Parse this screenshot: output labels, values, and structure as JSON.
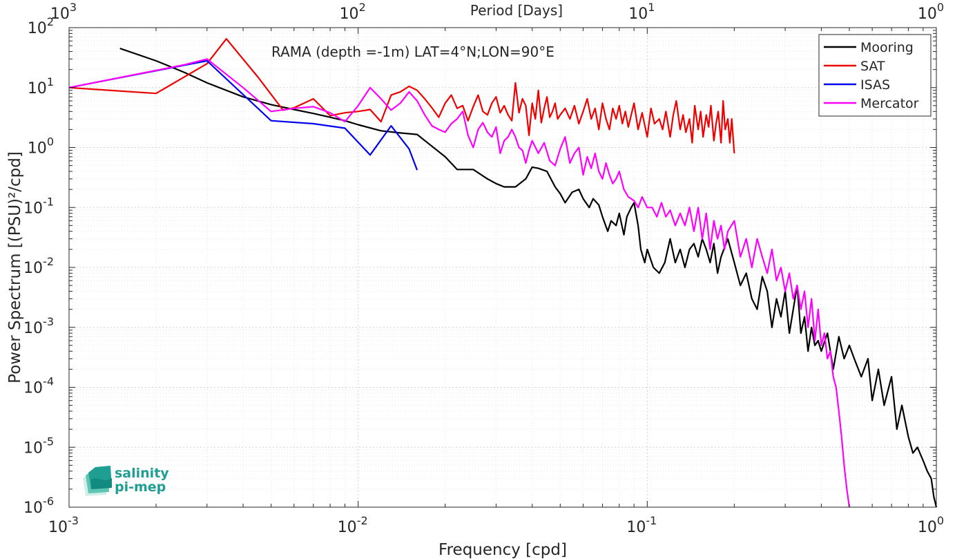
{
  "chart_data": {
    "type": "line",
    "title": "RAMA (depth =-1m) LAT=4°N;LON=90°E",
    "xlabel": "Frequency [cpd]",
    "ylabel": "Power Spectrum [(PSU)²/cpd]",
    "top_xlabel": "Period [Days]",
    "x_scale": "log",
    "y_scale": "log",
    "xlim": [
      0.001,
      1
    ],
    "ylim": [
      1e-06,
      100
    ],
    "grid": true,
    "legend_position": "top-right",
    "x_ticks": [
      {
        "base": "10",
        "exp": "-3"
      },
      {
        "base": "10",
        "exp": "-2"
      },
      {
        "base": "10",
        "exp": "-1"
      },
      {
        "base": "10",
        "exp": "0"
      }
    ],
    "top_x_ticks": [
      {
        "base": "10",
        "exp": "3"
      },
      {
        "base": "10",
        "exp": "2"
      },
      {
        "base": "10",
        "exp": "1"
      },
      {
        "base": "10",
        "exp": "0"
      }
    ],
    "y_ticks": [
      {
        "base": "10",
        "exp": "-6"
      },
      {
        "base": "10",
        "exp": "-5"
      },
      {
        "base": "10",
        "exp": "-4"
      },
      {
        "base": "10",
        "exp": "-3"
      },
      {
        "base": "10",
        "exp": "-2"
      },
      {
        "base": "10",
        "exp": "-1"
      },
      {
        "base": "10",
        "exp": "0"
      },
      {
        "base": "10",
        "exp": "1"
      },
      {
        "base": "10",
        "exp": "2"
      }
    ],
    "series": [
      {
        "name": "Mooring",
        "color": "#000000",
        "x": [
          0.0015,
          0.002,
          0.0025,
          0.003,
          0.004,
          0.005,
          0.006,
          0.007,
          0.008,
          0.009,
          0.01,
          0.012,
          0.014,
          0.016,
          0.018,
          0.02,
          0.022,
          0.025,
          0.028,
          0.03,
          0.032,
          0.035,
          0.038,
          0.04,
          0.042,
          0.045,
          0.048,
          0.05,
          0.052,
          0.055,
          0.058,
          0.06,
          0.063,
          0.065,
          0.068,
          0.07,
          0.073,
          0.075,
          0.078,
          0.08,
          0.083,
          0.085,
          0.088,
          0.09,
          0.093,
          0.095,
          0.098,
          0.1,
          0.105,
          0.11,
          0.115,
          0.12,
          0.125,
          0.13,
          0.135,
          0.14,
          0.145,
          0.15,
          0.155,
          0.16,
          0.165,
          0.17,
          0.175,
          0.18,
          0.19,
          0.2,
          0.21,
          0.22,
          0.23,
          0.24,
          0.25,
          0.26,
          0.27,
          0.28,
          0.29,
          0.3,
          0.31,
          0.32,
          0.33,
          0.34,
          0.35,
          0.36,
          0.37,
          0.38,
          0.39,
          0.4,
          0.42,
          0.44,
          0.46,
          0.48,
          0.5,
          0.52,
          0.55,
          0.58,
          0.6,
          0.63,
          0.66,
          0.7,
          0.73,
          0.76,
          0.8,
          0.83,
          0.86,
          0.9,
          0.93,
          0.96,
          0.98,
          1.0
        ],
        "y": [
          45,
          28,
          18,
          12,
          7,
          5.2,
          4.3,
          3.7,
          3.2,
          2.8,
          2.4,
          1.9,
          1.75,
          1.65,
          1.05,
          0.7,
          0.43,
          0.43,
          0.3,
          0.25,
          0.22,
          0.22,
          0.3,
          0.47,
          0.45,
          0.4,
          0.22,
          0.17,
          0.12,
          0.18,
          0.2,
          0.14,
          0.1,
          0.14,
          0.11,
          0.07,
          0.04,
          0.06,
          0.05,
          0.08,
          0.035,
          0.07,
          0.1,
          0.12,
          0.05,
          0.02,
          0.012,
          0.02,
          0.01,
          0.008,
          0.012,
          0.03,
          0.012,
          0.02,
          0.01,
          0.02,
          0.025,
          0.015,
          0.03,
          0.02,
          0.012,
          0.025,
          0.008,
          0.015,
          0.03,
          0.012,
          0.005,
          0.008,
          0.003,
          0.002,
          0.007,
          0.004,
          0.001,
          0.003,
          0.0015,
          0.004,
          0.0008,
          0.002,
          0.005,
          0.0008,
          0.0015,
          0.0004,
          0.001,
          0.0005,
          0.0006,
          0.0004,
          0.0008,
          0.0002,
          0.0007,
          0.0003,
          0.0005,
          0.0003,
          0.00015,
          0.0003,
          6e-05,
          0.0002,
          5e-05,
          0.00015,
          2e-05,
          5e-05,
          1.5e-05,
          8e-06,
          1e-05,
          6e-06,
          4e-06,
          3e-06,
          1.5e-06,
          1e-06
        ]
      },
      {
        "name": "SAT",
        "color": "#ee0000",
        "x": [
          0.001,
          0.002,
          0.003,
          0.0035,
          0.0045,
          0.0055,
          0.006,
          0.007,
          0.008,
          0.009,
          0.01,
          0.011,
          0.012,
          0.013,
          0.014,
          0.015,
          0.016,
          0.017,
          0.018,
          0.019,
          0.02,
          0.021,
          0.022,
          0.023,
          0.024,
          0.025,
          0.026,
          0.027,
          0.028,
          0.029,
          0.03,
          0.031,
          0.032,
          0.033,
          0.034,
          0.035,
          0.036,
          0.037,
          0.038,
          0.039,
          0.04,
          0.041,
          0.042,
          0.043,
          0.044,
          0.045,
          0.046,
          0.047,
          0.048,
          0.049,
          0.05,
          0.052,
          0.054,
          0.056,
          0.058,
          0.06,
          0.062,
          0.064,
          0.066,
          0.068,
          0.07,
          0.072,
          0.074,
          0.076,
          0.078,
          0.08,
          0.082,
          0.084,
          0.086,
          0.088,
          0.09,
          0.093,
          0.096,
          0.1,
          0.103,
          0.106,
          0.11,
          0.113,
          0.116,
          0.12,
          0.123,
          0.126,
          0.13,
          0.133,
          0.136,
          0.14,
          0.143,
          0.146,
          0.15,
          0.153,
          0.156,
          0.16,
          0.163,
          0.166,
          0.17,
          0.173,
          0.176,
          0.18,
          0.183,
          0.186,
          0.19,
          0.193,
          0.196,
          0.2
        ],
        "y": [
          10,
          8,
          25,
          65,
          15,
          4.2,
          4.6,
          6.5,
          3.4,
          3.8,
          4.0,
          4.3,
          2.7,
          7.5,
          8.5,
          10.5,
          9,
          6.5,
          4.6,
          3.2,
          5.5,
          7.5,
          4.5,
          5.0,
          2.8,
          4.8,
          7.5,
          4.0,
          3.5,
          5.5,
          7.0,
          3.8,
          5.0,
          3.5,
          2.8,
          12,
          3.8,
          6.5,
          5.0,
          1.6,
          5.5,
          3.0,
          9.0,
          2.6,
          4.5,
          7.0,
          3.2,
          4.0,
          5.5,
          3.0,
          3.5,
          4.5,
          3.0,
          5.0,
          2.5,
          4.0,
          6.5,
          3.0,
          4.5,
          2.0,
          5.5,
          3.0,
          2.0,
          4.5,
          3.0,
          5.0,
          2.5,
          4.0,
          2.2,
          3.5,
          5.5,
          2.0,
          3.8,
          1.5,
          4.5,
          2.5,
          3.0,
          2.0,
          4.0,
          1.5,
          3.5,
          6.0,
          2.0,
          3.5,
          1.8,
          3.0,
          1.2,
          5.0,
          2.0,
          4.0,
          1.5,
          3.5,
          2.2,
          5.0,
          1.3,
          2.5,
          4.0,
          1.2,
          6.0,
          2.0,
          3.0,
          1.2,
          3.0,
          0.8
        ]
      },
      {
        "name": "ISAS",
        "color": "#0000ee",
        "x": [
          0.001,
          0.003,
          0.005,
          0.007,
          0.009,
          0.011,
          0.013,
          0.015,
          0.016
        ],
        "y": [
          10,
          28,
          2.8,
          2.5,
          2.1,
          0.75,
          2.3,
          0.95,
          0.42
        ]
      },
      {
        "name": "Mercator",
        "color": "#ff00ff",
        "x": [
          0.001,
          0.0025,
          0.003,
          0.004,
          0.005,
          0.006,
          0.007,
          0.008,
          0.009,
          0.01,
          0.011,
          0.012,
          0.013,
          0.014,
          0.015,
          0.016,
          0.017,
          0.018,
          0.019,
          0.02,
          0.021,
          0.022,
          0.023,
          0.024,
          0.025,
          0.026,
          0.027,
          0.028,
          0.029,
          0.03,
          0.031,
          0.032,
          0.033,
          0.034,
          0.035,
          0.036,
          0.037,
          0.038,
          0.039,
          0.04,
          0.042,
          0.044,
          0.046,
          0.048,
          0.05,
          0.052,
          0.054,
          0.056,
          0.058,
          0.06,
          0.062,
          0.064,
          0.066,
          0.068,
          0.07,
          0.072,
          0.074,
          0.076,
          0.078,
          0.08,
          0.083,
          0.086,
          0.09,
          0.093,
          0.096,
          0.1,
          0.104,
          0.108,
          0.112,
          0.116,
          0.12,
          0.125,
          0.13,
          0.135,
          0.14,
          0.145,
          0.15,
          0.155,
          0.16,
          0.165,
          0.17,
          0.175,
          0.18,
          0.185,
          0.19,
          0.2,
          0.21,
          0.22,
          0.23,
          0.24,
          0.25,
          0.26,
          0.27,
          0.28,
          0.29,
          0.3,
          0.31,
          0.32,
          0.33,
          0.34,
          0.35,
          0.36,
          0.37,
          0.38,
          0.39,
          0.4,
          0.41,
          0.42,
          0.43,
          0.44,
          0.45,
          0.46,
          0.47,
          0.48,
          0.49,
          0.5
        ],
        "y": [
          10,
          24,
          30,
          10,
          4.0,
          4.5,
          4.8,
          3.8,
          2.7,
          5.0,
          10,
          6.5,
          4.2,
          5.5,
          8.5,
          6.0,
          3.5,
          2.3,
          2.0,
          1.8,
          2.5,
          3.0,
          4.0,
          1.6,
          1.0,
          2.0,
          2.6,
          1.8,
          1.5,
          2.2,
          0.8,
          1.3,
          1.5,
          2.0,
          1.5,
          1.0,
          0.9,
          0.55,
          0.9,
          1.3,
          0.8,
          1.2,
          0.6,
          0.5,
          0.95,
          1.5,
          0.55,
          0.8,
          1.0,
          0.35,
          0.7,
          0.45,
          0.8,
          0.4,
          0.3,
          0.55,
          0.35,
          0.25,
          0.3,
          0.4,
          0.2,
          0.15,
          0.13,
          0.1,
          0.15,
          0.1,
          0.1,
          0.07,
          0.12,
          0.07,
          0.09,
          0.05,
          0.08,
          0.05,
          0.1,
          0.04,
          0.1,
          0.03,
          0.08,
          0.02,
          0.06,
          0.03,
          0.05,
          0.02,
          0.04,
          0.06,
          0.015,
          0.03,
          0.01,
          0.03,
          0.015,
          0.008,
          0.02,
          0.006,
          0.01,
          0.004,
          0.008,
          0.003,
          0.005,
          0.002,
          0.004,
          0.001,
          0.003,
          0.0006,
          0.002,
          0.0005,
          0.0008,
          0.0003,
          0.0004,
          0.00015,
          0.0001,
          4e-05,
          1.5e-05,
          5e-06,
          2e-06,
          1e-06
        ]
      }
    ]
  },
  "logo": {
    "line1": "salinity",
    "line2": "pi-mep"
  }
}
